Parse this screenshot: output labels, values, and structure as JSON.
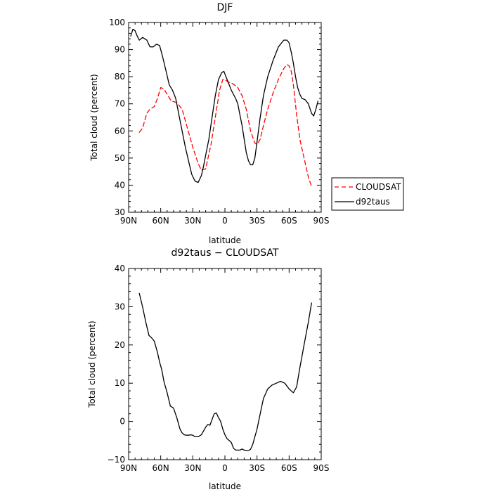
{
  "chart_data": [
    {
      "type": "line",
      "title": "DJF",
      "xlabel": "latitude",
      "ylabel": "Total cloud (percent)",
      "xlim": [
        90,
        -90
      ],
      "ylim": [
        30,
        100
      ],
      "x_ticks": [
        90,
        60,
        30,
        0,
        -30,
        -60,
        -90
      ],
      "x_tick_labels": [
        "90N",
        "60N",
        "30N",
        "0",
        "30S",
        "60S",
        "90S"
      ],
      "y_ticks": [
        30,
        40,
        50,
        60,
        70,
        80,
        90,
        100
      ],
      "y_tick_labels": [
        "30",
        "40",
        "50",
        "60",
        "70",
        "80",
        "90",
        "100"
      ],
      "legend": "right",
      "series": [
        {
          "name": "CLOUDSAT",
          "color": "#ff0000",
          "style": "dashed",
          "x": [
            80,
            77,
            73,
            70,
            66,
            63,
            60,
            57,
            54,
            50,
            45,
            40,
            35,
            30,
            25,
            22,
            18,
            13,
            9,
            5,
            2,
            0,
            -3,
            -7,
            -12,
            -16,
            -20,
            -24,
            -28,
            -30,
            -33,
            -36,
            -40,
            -45,
            -50,
            -55,
            -58,
            -60,
            -62,
            -64,
            -67,
            -70,
            -74,
            -78,
            -81
          ],
          "y": [
            59.5,
            61,
            66.5,
            68,
            69,
            72,
            76,
            75.5,
            73.5,
            71,
            70.5,
            68,
            61,
            54,
            48,
            45.5,
            46,
            55,
            65,
            75,
            79,
            79,
            78,
            77.5,
            76,
            73,
            68,
            60,
            55.5,
            55,
            57,
            62,
            68,
            74,
            79,
            83,
            84.5,
            84,
            82,
            77,
            66,
            57,
            50,
            43,
            39.5
          ]
        },
        {
          "name": "d92taus",
          "color": "#000000",
          "style": "solid",
          "x": [
            88,
            86,
            84,
            82,
            80,
            77,
            73,
            70,
            67,
            64,
            61,
            58,
            55,
            52,
            49,
            46,
            43,
            40,
            37,
            34,
            31,
            28,
            25,
            22,
            20,
            18,
            15,
            12,
            9,
            6,
            3,
            1,
            0,
            -2,
            -4,
            -6,
            -8,
            -10,
            -12,
            -14,
            -16,
            -18,
            -20,
            -22,
            -24,
            -26,
            -28,
            -30,
            -33,
            -36,
            -40,
            -45,
            -50,
            -55,
            -58,
            -60,
            -62,
            -64,
            -66,
            -68,
            -70,
            -72,
            -75,
            -78,
            -81,
            -83,
            -85,
            -87
          ],
          "y": [
            95,
            97.5,
            97,
            95,
            93.5,
            94.5,
            93.5,
            91,
            91,
            92,
            91.5,
            87,
            82,
            77,
            75,
            72,
            66,
            60,
            54,
            49,
            44,
            41.5,
            41,
            43.5,
            47,
            51,
            57,
            65,
            73,
            79,
            81.5,
            82,
            81,
            79,
            77,
            75,
            73.5,
            72,
            70,
            66,
            62,
            57,
            52,
            49,
            47.5,
            47.5,
            50,
            56,
            65,
            73,
            80,
            86,
            91,
            93.5,
            93.5,
            92.5,
            89,
            85,
            80,
            76,
            73.5,
            72,
            71.5,
            70,
            66.5,
            65.5,
            68,
            71
          ]
        }
      ]
    },
    {
      "type": "line",
      "title": "d92taus − CLOUDSAT",
      "xlabel": "latitude",
      "ylabel": "Total cloud (percent)",
      "xlim": [
        90,
        -90
      ],
      "ylim": [
        -10,
        40
      ],
      "x_ticks": [
        90,
        60,
        30,
        0,
        -30,
        -60,
        -90
      ],
      "x_tick_labels": [
        "90N",
        "60N",
        "30N",
        "0",
        "30S",
        "60S",
        "90S"
      ],
      "y_ticks": [
        -10,
        0,
        10,
        20,
        30,
        40
      ],
      "y_tick_labels": [
        "−10",
        "0",
        "10",
        "20",
        "30",
        "40"
      ],
      "series": [
        {
          "color": "#000000",
          "style": "solid",
          "x": [
            80,
            77,
            74,
            71,
            69,
            66,
            63,
            61,
            59,
            57,
            54,
            51,
            48,
            45,
            42,
            40,
            38,
            36,
            34,
            32,
            30,
            28,
            25,
            22,
            20,
            18,
            16,
            14,
            12,
            10,
            8,
            6,
            4,
            2,
            0,
            -2,
            -4,
            -6,
            -8,
            -10,
            -12,
            -14,
            -16,
            -18,
            -20,
            -22,
            -24,
            -26,
            -28,
            -30,
            -33,
            -36,
            -40,
            -44,
            -48,
            -52,
            -56,
            -60,
            -64,
            -67,
            -70,
            -74,
            -78,
            -81
          ],
          "y": [
            33.5,
            30,
            26,
            22.5,
            22,
            21,
            18,
            15.5,
            13.5,
            10.5,
            7.5,
            4,
            3.5,
            1,
            -2,
            -3,
            -3.5,
            -3.6,
            -3.6,
            -3.5,
            -3.6,
            -4,
            -4,
            -3.5,
            -2.5,
            -1.5,
            -0.8,
            -1,
            0.5,
            2,
            2.2,
            1,
            0,
            -2,
            -3.5,
            -4.5,
            -5,
            -5.5,
            -7,
            -7.5,
            -7.5,
            -7.5,
            -7.2,
            -7.5,
            -7.6,
            -7.6,
            -7.3,
            -6,
            -4,
            -2,
            2,
            6,
            8.5,
            9.5,
            10,
            10.5,
            10,
            8.5,
            7.5,
            9,
            14,
            20,
            26,
            31
          ]
        }
      ]
    }
  ]
}
